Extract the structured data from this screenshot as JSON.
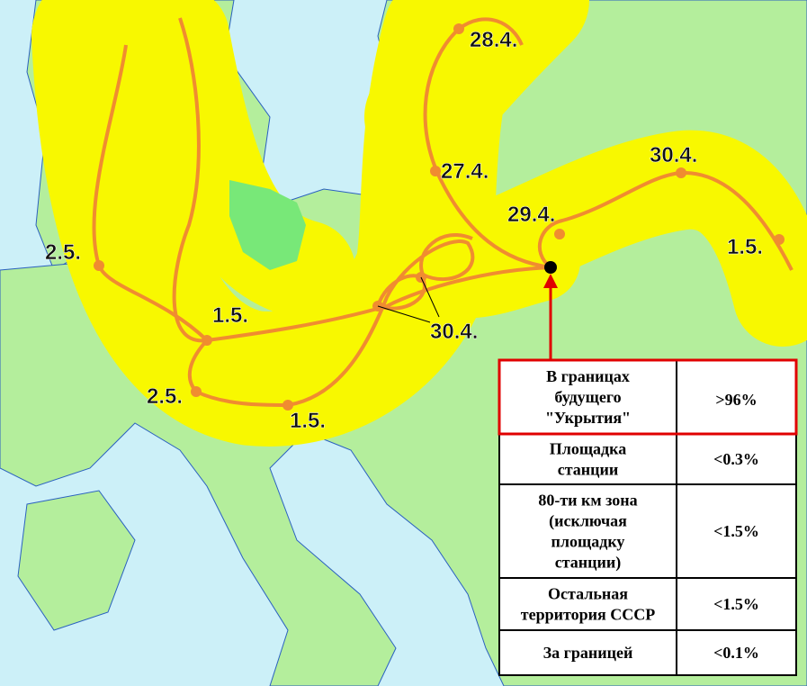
{
  "map": {
    "labels": [
      "28.4.",
      "27.4.",
      "29.4.",
      "30.4.",
      "1.5.",
      "2.5.",
      "1.5.",
      "30.4.",
      "2.5.",
      "1.5."
    ]
  },
  "table": {
    "rows": [
      {
        "label": [
          "В границах",
          "будущего",
          "\"Укрытия\""
        ],
        "value": ">96%"
      },
      {
        "label": [
          "Площадка",
          "станции"
        ],
        "value": "<0.3%"
      },
      {
        "label": [
          "80-ти км зона",
          "(исключая",
          "площадку",
          "станции)"
        ],
        "value": "<1.5%"
      },
      {
        "label": [
          "Остальная",
          "территория СССР"
        ],
        "value": "<1.5%"
      },
      {
        "label": [
          "За границей"
        ],
        "value": "<0.1%"
      }
    ]
  }
}
